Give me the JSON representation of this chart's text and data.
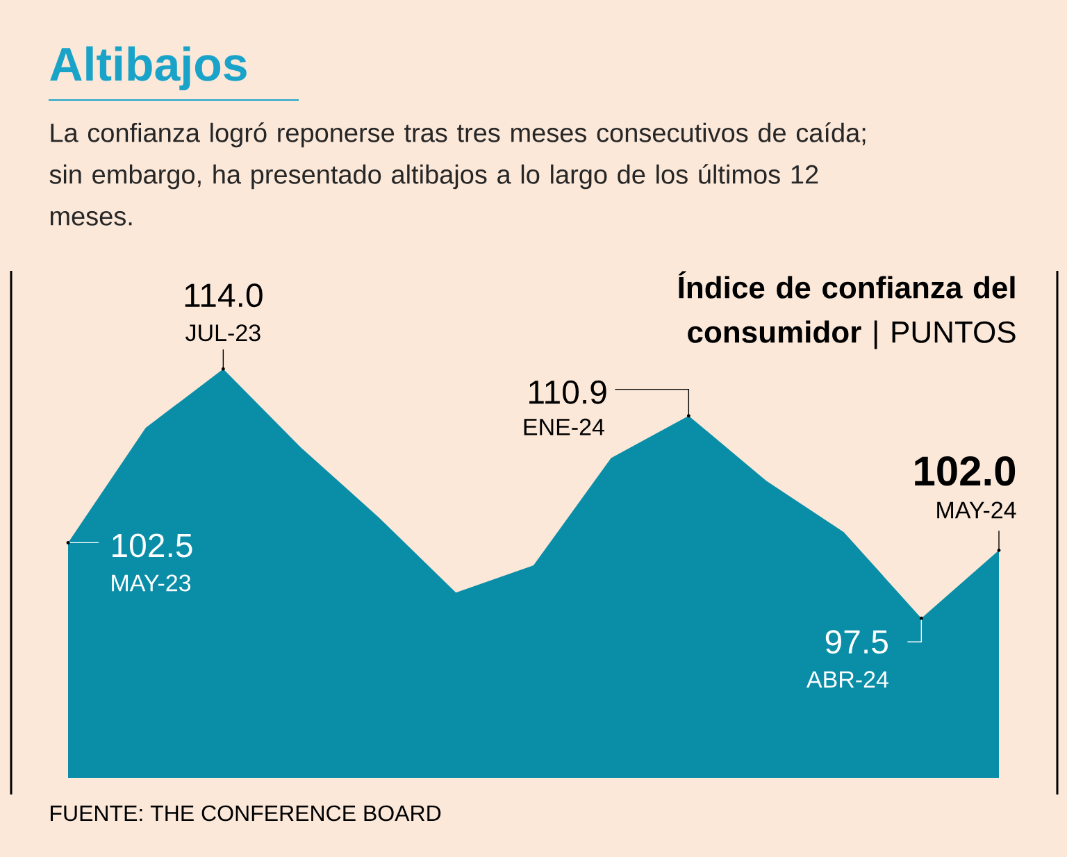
{
  "chart_data": {
    "type": "area",
    "title": "Altibajos",
    "subtitle": "La confianza logró reponerse tras tres meses consecutivos de caída; sin embargo, ha presentado altibajos a lo largo de los últimos 12 meses.",
    "ylabel": "**Índice de confianza del consumidor** | PUNTOS",
    "categories": [
      null,
      null,
      null,
      null,
      null,
      null,
      null,
      null,
      null,
      null,
      null,
      null,
      null
    ],
    "values": [
      102.5,
      110.1,
      114.0,
      108.8,
      104.2,
      99.2,
      101.0,
      108.1,
      110.9,
      106.6,
      103.2,
      97.5,
      102.0
    ],
    "value_labels": [
      "102.5",
      null,
      "114.0",
      null,
      null,
      null,
      null,
      null,
      "110.9",
      null,
      null,
      "97.5",
      "102.0"
    ],
    "color": "#0a8ea8",
    "annotations": [
      "MAY-23",
      "JUL-23",
      "ENE-24",
      "ABR-24",
      "MAY-24",
      "FUENTE: THE CONFERENCE BOARD"
    ]
  }
}
